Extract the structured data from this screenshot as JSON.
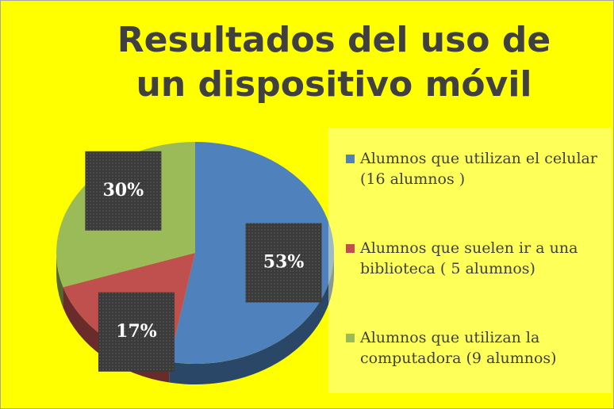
{
  "chart_data": {
    "type": "pie",
    "title": "Resultados del uso de un dispositivo móvil",
    "categories": [
      "Alumnos que utilizan el celular (16 alumnos )",
      "Alumnos que suelen ir a una biblioteca ( 5 alumnos)",
      "Alumnos que utilizan la computadora (9 alumnos)"
    ],
    "values": [
      53,
      17,
      30
    ],
    "value_labels": [
      "53%",
      "17%",
      "30%"
    ],
    "colors": [
      "#4f81bd",
      "#c0504d",
      "#9bbb59"
    ],
    "legend": "right"
  }
}
